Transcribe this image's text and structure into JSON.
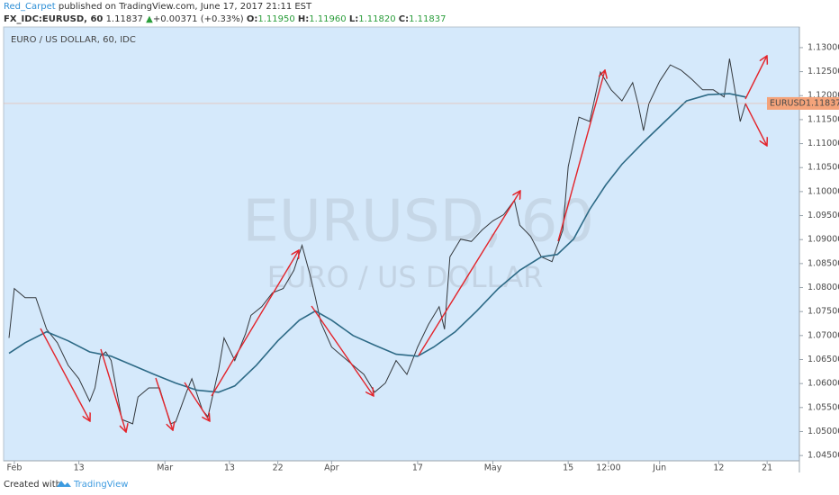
{
  "header": {
    "author": "Red_Carpet",
    "published": "published on TradingView.com, June 17, 2017 21:11 EST",
    "symbol": "FX_IDC:EURUSD, 60",
    "price": "1.11837",
    "arrow": "▲",
    "change": "+0.00371 (+0.33%)",
    "open_label": "O:",
    "open": "1.11950",
    "high_label": "H:",
    "high": "1.11960",
    "low_label": "L:",
    "low": "1.11820",
    "close_label": "C:",
    "close": "1.11837"
  },
  "footer": {
    "created": "Created with",
    "brand": "TradingView"
  },
  "chart_data": {
    "type": "line",
    "title": "EURO / US DOLLAR, 60, IDC",
    "watermark": "EURUSD, 60",
    "watermark_sub": "EURO / US DOLLAR",
    "background": "#d5e9fb",
    "grid": false,
    "symbol_tag": "EURUSD",
    "last": 1.11837,
    "tag_color": "#f4a37a",
    "xlim": [
      30,
      178
    ],
    "ylim": [
      1.0439,
      1.1343
    ],
    "xticks": [
      {
        "value": 32,
        "label": "Feb"
      },
      {
        "value": 44,
        "label": "13"
      },
      {
        "value": 60,
        "label": "Mar"
      },
      {
        "value": 72,
        "label": "13"
      },
      {
        "value": 81,
        "label": "22"
      },
      {
        "value": 91,
        "label": "Apr"
      },
      {
        "value": 107,
        "label": "17"
      },
      {
        "value": 121,
        "label": "May"
      },
      {
        "value": 135,
        "label": "15"
      },
      {
        "value": 142.5,
        "label": "12:00"
      },
      {
        "value": 152,
        "label": "Jun"
      },
      {
        "value": 163,
        "label": "12"
      },
      {
        "value": 172,
        "label": "21"
      }
    ],
    "yticks": [
      {
        "value": 1.045,
        "label": "1.04500"
      },
      {
        "value": 1.05,
        "label": "1.05000"
      },
      {
        "value": 1.055,
        "label": "1.05500"
      },
      {
        "value": 1.06,
        "label": "1.06000"
      },
      {
        "value": 1.065,
        "label": "1.06500"
      },
      {
        "value": 1.07,
        "label": "1.07000"
      },
      {
        "value": 1.075,
        "label": "1.07500"
      },
      {
        "value": 1.08,
        "label": "1.08000"
      },
      {
        "value": 1.085,
        "label": "1.08500"
      },
      {
        "value": 1.09,
        "label": "1.09000"
      },
      {
        "value": 1.095,
        "label": "1.09500"
      },
      {
        "value": 1.1,
        "label": "1.10000"
      },
      {
        "value": 1.105,
        "label": "1.10500"
      },
      {
        "value": 1.11,
        "label": "1.11000"
      },
      {
        "value": 1.115,
        "label": "1.11500"
      },
      {
        "value": 1.12,
        "label": "1.12000"
      },
      {
        "value": 1.125,
        "label": "1.12500"
      },
      {
        "value": 1.13,
        "label": "1.13000"
      }
    ],
    "series": [
      {
        "name": "EURUSD",
        "color": "#33383d",
        "x": [
          31,
          32,
          34,
          36,
          38,
          40,
          42,
          44,
          46,
          47,
          48,
          49,
          50,
          52,
          54,
          55,
          57,
          59,
          61,
          62,
          64,
          65,
          67,
          68,
          70,
          71,
          73,
          75,
          76,
          78,
          80,
          82,
          84,
          85.5,
          87,
          88,
          89,
          91,
          93,
          95,
          97,
          99,
          101,
          103,
          105,
          107,
          109,
          111,
          112,
          113,
          115,
          117,
          119,
          121,
          123,
          125,
          126,
          128,
          130,
          132,
          134,
          135,
          137,
          139,
          141,
          143,
          145,
          147,
          148,
          149,
          150,
          152,
          154,
          156,
          158,
          160,
          162,
          164,
          165,
          166,
          167,
          168
        ],
        "values": [
          1.0695,
          1.0798,
          1.0779,
          1.0779,
          1.0713,
          1.0685,
          1.0638,
          1.061,
          1.0563,
          1.0591,
          1.0657,
          1.0666,
          1.0648,
          1.0525,
          1.0516,
          1.0572,
          1.0591,
          1.0591,
          1.0516,
          1.052,
          1.0582,
          1.061,
          1.0544,
          1.0531,
          1.0629,
          1.0695,
          1.0648,
          1.0704,
          1.0742,
          1.076,
          1.0789,
          1.0798,
          1.0836,
          1.0888,
          1.0826,
          1.0779,
          1.0727,
          1.0676,
          1.0657,
          1.0638,
          1.0619,
          1.0582,
          1.0601,
          1.0648,
          1.0619,
          1.0676,
          1.0723,
          1.076,
          1.0713,
          1.0864,
          1.0901,
          1.0896,
          1.092,
          1.0939,
          1.0952,
          1.0982,
          1.093,
          1.0907,
          1.0864,
          1.0854,
          1.092,
          1.1052,
          1.1155,
          1.1146,
          1.1249,
          1.1212,
          1.1189,
          1.1227,
          1.1183,
          1.1127,
          1.1183,
          1.123,
          1.1264,
          1.1253,
          1.1234,
          1.1212,
          1.1212,
          1.1197,
          1.1277,
          1.1212,
          1.1146,
          1.11837
        ]
      },
      {
        "color": "#2d6a86",
        "x": [
          31,
          34,
          38,
          42,
          46,
          50,
          54,
          58,
          62,
          66,
          70,
          73,
          77,
          81,
          85,
          88,
          91,
          95,
          99,
          103,
          107,
          110,
          114,
          118,
          122,
          126,
          130,
          133,
          136,
          139,
          142,
          145,
          149,
          153,
          157,
          161,
          165,
          168
        ],
        "values": [
          1.0663,
          1.0685,
          1.0708,
          1.0689,
          1.0666,
          1.0657,
          1.0638,
          1.0619,
          1.0601,
          1.0586,
          1.0582,
          1.0595,
          1.0638,
          1.0689,
          1.0732,
          1.0751,
          1.0732,
          1.07,
          1.068,
          1.0661,
          1.0657,
          1.0676,
          1.0708,
          1.0751,
          1.0798,
          1.0836,
          1.0864,
          1.0869,
          1.0901,
          1.0963,
          1.1014,
          1.1057,
          1.1103,
          1.1146,
          1.1189,
          1.1202,
          1.1204,
          1.1197
        ]
      }
    ]
  }
}
